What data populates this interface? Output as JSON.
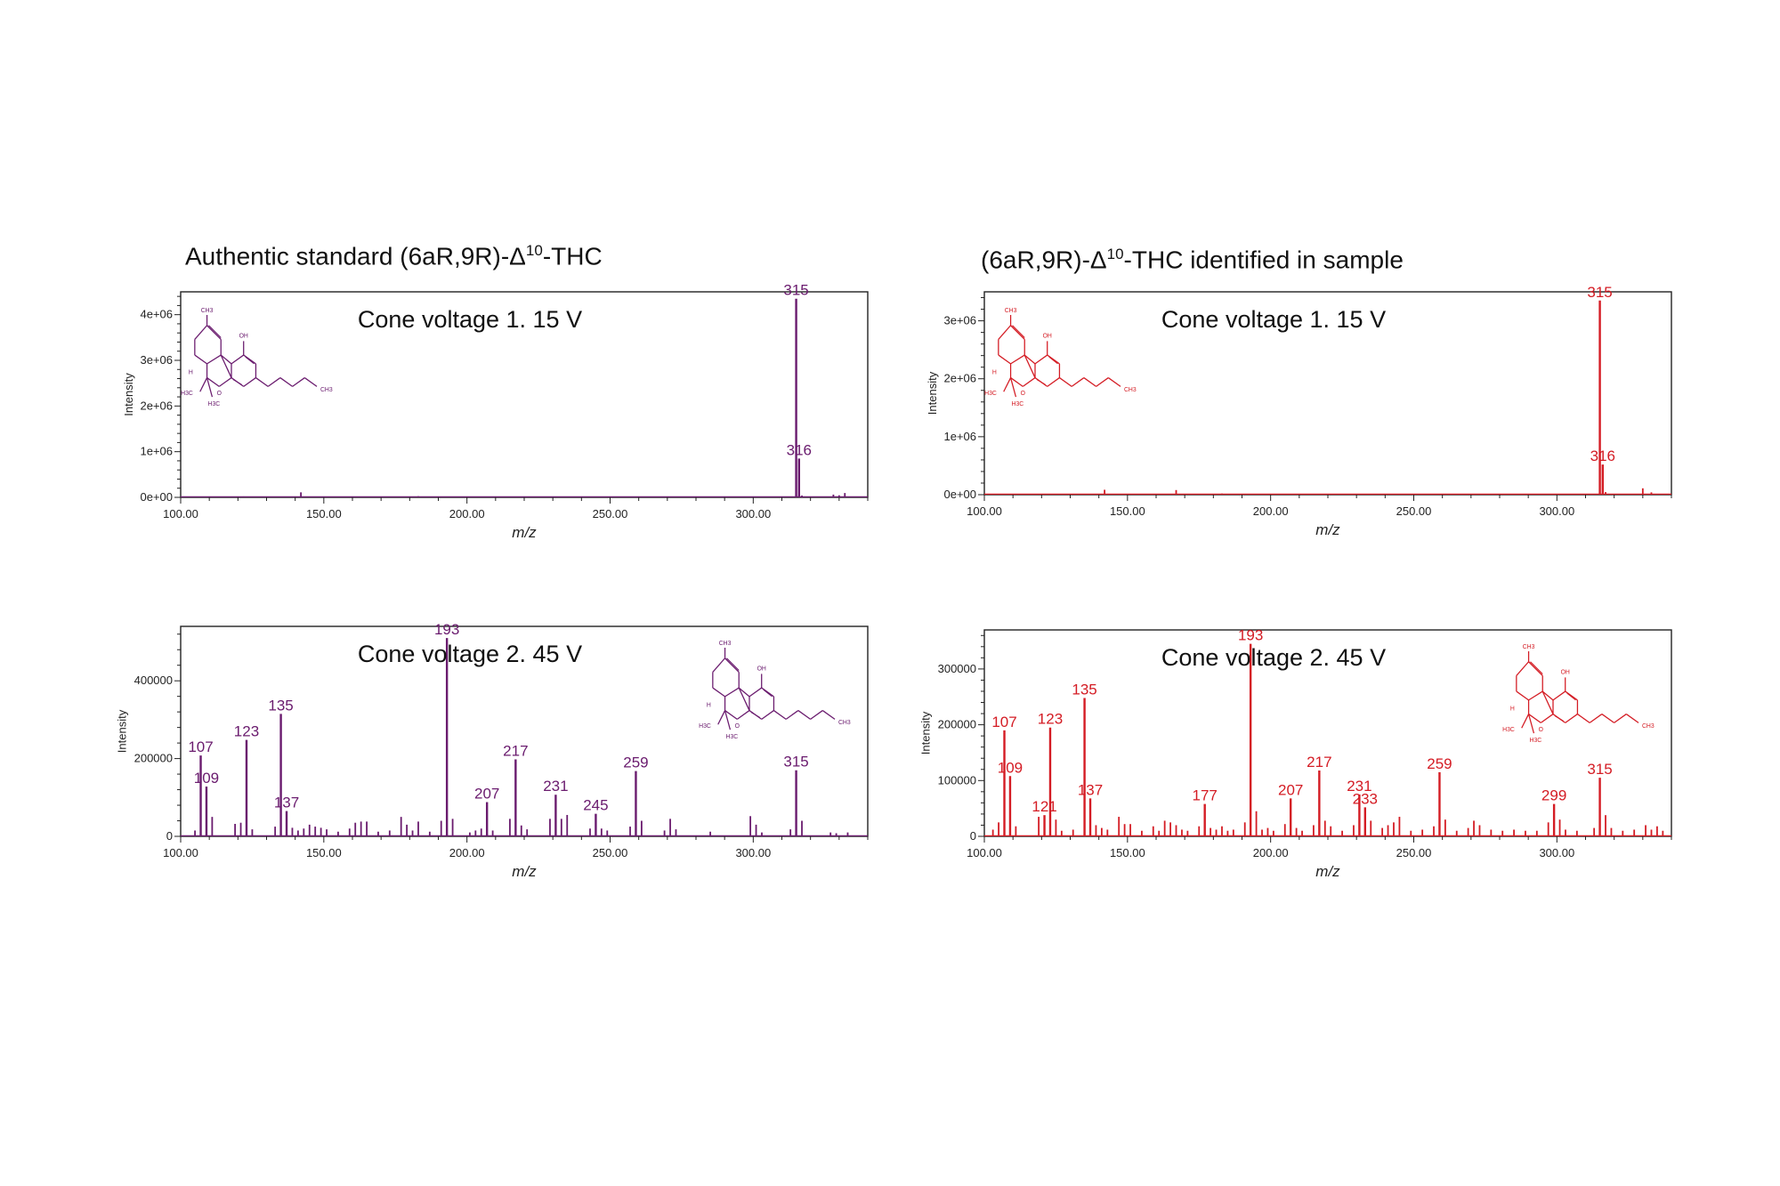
{
  "headings": {
    "left": {
      "pre": "Authentic standard (6aR,9R)-Δ",
      "sup": "10",
      "post": "-THC"
    },
    "right": {
      "pre": "(6aR,9R)-Δ",
      "sup": "10",
      "post": "-THC identified in sample"
    }
  },
  "colors": {
    "standard": "#6a1b6e",
    "sample": "#d41c24",
    "frame": "#222222"
  },
  "chart_data": [
    {
      "type": "bar",
      "panel": "standard-15V",
      "title": "Cone voltage 1. 15 V",
      "xlabel": "m/z",
      "ylabel": "Intensity",
      "xlim": [
        100,
        340
      ],
      "ylim": [
        0,
        4500000
      ],
      "x_ticks": [
        100,
        150,
        200,
        250,
        300
      ],
      "x_tick_labels": [
        "100.00",
        "150.00",
        "200.00",
        "250.00",
        "300.00"
      ],
      "y_ticks": [
        0,
        1000000,
        2000000,
        3000000,
        4000000
      ],
      "y_tick_labels": [
        "0e+00",
        "1e+06",
        "2e+06",
        "3e+06",
        "4e+06"
      ],
      "labeled_peaks": [
        {
          "x": 315,
          "y": 4350000,
          "label": "315"
        },
        {
          "x": 316,
          "y": 850000,
          "label": "316"
        }
      ],
      "minor_peaks": [
        [
          118,
          15000
        ],
        [
          122,
          20000
        ],
        [
          125,
          18000
        ],
        [
          142,
          110000
        ],
        [
          160,
          12000
        ],
        [
          183,
          25000
        ],
        [
          210,
          10000
        ],
        [
          231,
          15000
        ],
        [
          259,
          12000
        ],
        [
          317,
          40000
        ],
        [
          328,
          60000
        ],
        [
          330,
          45000
        ],
        [
          332,
          95000
        ]
      ]
    },
    {
      "type": "bar",
      "panel": "standard-45V",
      "title": "Cone voltage 2. 45 V",
      "xlabel": "m/z",
      "ylabel": "Intensity",
      "xlim": [
        100,
        340
      ],
      "ylim": [
        0,
        540000
      ],
      "x_ticks": [
        100,
        150,
        200,
        250,
        300
      ],
      "x_tick_labels": [
        "100.00",
        "150.00",
        "200.00",
        "250.00",
        "300.00"
      ],
      "y_ticks": [
        0,
        200000,
        400000
      ],
      "y_tick_labels": [
        "0",
        "200000",
        "400000"
      ],
      "labeled_peaks": [
        {
          "x": 107,
          "y": 208000,
          "label": "107"
        },
        {
          "x": 109,
          "y": 128000,
          "label": "109"
        },
        {
          "x": 123,
          "y": 248000,
          "label": "123"
        },
        {
          "x": 135,
          "y": 315000,
          "label": "135"
        },
        {
          "x": 137,
          "y": 65000,
          "label": "137"
        },
        {
          "x": 193,
          "y": 510000,
          "label": "193"
        },
        {
          "x": 207,
          "y": 88000,
          "label": "207"
        },
        {
          "x": 217,
          "y": 198000,
          "label": "217"
        },
        {
          "x": 231,
          "y": 107000,
          "label": "231"
        },
        {
          "x": 245,
          "y": 58000,
          "label": "245"
        },
        {
          "x": 259,
          "y": 168000,
          "label": "259"
        },
        {
          "x": 315,
          "y": 170000,
          "label": "315"
        }
      ],
      "minor_peaks": [
        [
          105,
          15000
        ],
        [
          111,
          50000
        ],
        [
          119,
          32000
        ],
        [
          121,
          35000
        ],
        [
          125,
          18000
        ],
        [
          133,
          25000
        ],
        [
          139,
          22000
        ],
        [
          141,
          15000
        ],
        [
          143,
          20000
        ],
        [
          145,
          30000
        ],
        [
          147,
          25000
        ],
        [
          149,
          22000
        ],
        [
          151,
          18000
        ],
        [
          155,
          12000
        ],
        [
          159,
          20000
        ],
        [
          161,
          35000
        ],
        [
          163,
          38000
        ],
        [
          165,
          38000
        ],
        [
          169,
          12000
        ],
        [
          173,
          15000
        ],
        [
          177,
          50000
        ],
        [
          179,
          30000
        ],
        [
          181,
          15000
        ],
        [
          183,
          38000
        ],
        [
          187,
          12000
        ],
        [
          191,
          40000
        ],
        [
          195,
          45000
        ],
        [
          201,
          10000
        ],
        [
          203,
          15000
        ],
        [
          205,
          20000
        ],
        [
          209,
          15000
        ],
        [
          215,
          45000
        ],
        [
          219,
          28000
        ],
        [
          221,
          18000
        ],
        [
          229,
          45000
        ],
        [
          233,
          45000
        ],
        [
          235,
          55000
        ],
        [
          243,
          20000
        ],
        [
          247,
          20000
        ],
        [
          249,
          15000
        ],
        [
          257,
          25000
        ],
        [
          261,
          40000
        ],
        [
          269,
          15000
        ],
        [
          271,
          45000
        ],
        [
          273,
          18000
        ],
        [
          285,
          12000
        ],
        [
          299,
          52000
        ],
        [
          301,
          30000
        ],
        [
          303,
          10000
        ],
        [
          313,
          18000
        ],
        [
          317,
          40000
        ],
        [
          327,
          10000
        ],
        [
          329,
          8000
        ],
        [
          333,
          10000
        ]
      ]
    },
    {
      "type": "bar",
      "panel": "sample-15V",
      "title": "Cone voltage 1. 15 V",
      "xlabel": "m/z",
      "ylabel": "Intensity",
      "xlim": [
        100,
        340
      ],
      "ylim": [
        0,
        3500000
      ],
      "x_ticks": [
        100,
        150,
        200,
        250,
        300
      ],
      "x_tick_labels": [
        "100.00",
        "150.00",
        "200.00",
        "250.00",
        "300.00"
      ],
      "y_ticks": [
        0,
        1000000,
        2000000,
        3000000
      ],
      "y_tick_labels": [
        "0e+00",
        "1e+06",
        "2e+06",
        "3e+06"
      ],
      "labeled_peaks": [
        {
          "x": 315,
          "y": 3350000,
          "label": "315"
        },
        {
          "x": 316,
          "y": 520000,
          "label": "316"
        }
      ],
      "minor_peaks": [
        [
          142,
          85000
        ],
        [
          167,
          80000
        ],
        [
          183,
          20000
        ],
        [
          207,
          12000
        ],
        [
          231,
          10000
        ],
        [
          259,
          12000
        ],
        [
          279,
          15000
        ],
        [
          317,
          45000
        ],
        [
          330,
          110000
        ],
        [
          333,
          40000
        ]
      ]
    },
    {
      "type": "bar",
      "panel": "sample-45V",
      "title": "Cone voltage 2. 45 V",
      "xlabel": "m/z",
      "ylabel": "Intensity",
      "xlim": [
        100,
        340
      ],
      "ylim": [
        0,
        370000
      ],
      "x_ticks": [
        100,
        150,
        200,
        250,
        300
      ],
      "x_tick_labels": [
        "100.00",
        "150.00",
        "200.00",
        "250.00",
        "300.00"
      ],
      "y_ticks": [
        0,
        100000,
        200000,
        300000
      ],
      "y_tick_labels": [
        "0",
        "100000",
        "200000",
        "300000"
      ],
      "labeled_peaks": [
        {
          "x": 107,
          "y": 190000,
          "label": "107"
        },
        {
          "x": 109,
          "y": 108000,
          "label": "109"
        },
        {
          "x": 121,
          "y": 38000,
          "label": "121"
        },
        {
          "x": 123,
          "y": 195000,
          "label": "123"
        },
        {
          "x": 135,
          "y": 248000,
          "label": "135"
        },
        {
          "x": 137,
          "y": 68000,
          "label": "137"
        },
        {
          "x": 177,
          "y": 58000,
          "label": "177"
        },
        {
          "x": 193,
          "y": 345000,
          "label": "193"
        },
        {
          "x": 207,
          "y": 68000,
          "label": "207"
        },
        {
          "x": 217,
          "y": 118000,
          "label": "217"
        },
        {
          "x": 231,
          "y": 75000,
          "label": "231"
        },
        {
          "x": 233,
          "y": 52000,
          "label": "233"
        },
        {
          "x": 259,
          "y": 115000,
          "label": "259"
        },
        {
          "x": 299,
          "y": 58000,
          "label": "299"
        },
        {
          "x": 315,
          "y": 105000,
          "label": "315"
        }
      ],
      "minor_peaks": [
        [
          103,
          12000
        ],
        [
          105,
          25000
        ],
        [
          111,
          18000
        ],
        [
          119,
          35000
        ],
        [
          125,
          30000
        ],
        [
          127,
          10000
        ],
        [
          131,
          12000
        ],
        [
          139,
          20000
        ],
        [
          141,
          15000
        ],
        [
          143,
          12000
        ],
        [
          147,
          35000
        ],
        [
          149,
          22000
        ],
        [
          151,
          22000
        ],
        [
          155,
          10000
        ],
        [
          159,
          18000
        ],
        [
          161,
          10000
        ],
        [
          163,
          28000
        ],
        [
          165,
          25000
        ],
        [
          167,
          20000
        ],
        [
          169,
          12000
        ],
        [
          171,
          10000
        ],
        [
          175,
          18000
        ],
        [
          179,
          15000
        ],
        [
          181,
          12000
        ],
        [
          183,
          18000
        ],
        [
          185,
          10000
        ],
        [
          187,
          12000
        ],
        [
          191,
          25000
        ],
        [
          195,
          45000
        ],
        [
          197,
          12000
        ],
        [
          199,
          15000
        ],
        [
          201,
          10000
        ],
        [
          205,
          22000
        ],
        [
          209,
          15000
        ],
        [
          211,
          10000
        ],
        [
          215,
          20000
        ],
        [
          219,
          28000
        ],
        [
          221,
          18000
        ],
        [
          225,
          10000
        ],
        [
          229,
          20000
        ],
        [
          235,
          28000
        ],
        [
          239,
          15000
        ],
        [
          241,
          20000
        ],
        [
          243,
          25000
        ],
        [
          245,
          35000
        ],
        [
          249,
          10000
        ],
        [
          253,
          12000
        ],
        [
          257,
          18000
        ],
        [
          261,
          30000
        ],
        [
          265,
          10000
        ],
        [
          269,
          15000
        ],
        [
          271,
          28000
        ],
        [
          273,
          20000
        ],
        [
          277,
          12000
        ],
        [
          281,
          10000
        ],
        [
          285,
          12000
        ],
        [
          289,
          10000
        ],
        [
          293,
          10000
        ],
        [
          297,
          25000
        ],
        [
          301,
          30000
        ],
        [
          303,
          12000
        ],
        [
          307,
          10000
        ],
        [
          313,
          15000
        ],
        [
          317,
          38000
        ],
        [
          319,
          15000
        ],
        [
          323,
          10000
        ],
        [
          327,
          12000
        ],
        [
          331,
          20000
        ],
        [
          333,
          12000
        ],
        [
          335,
          18000
        ],
        [
          337,
          10000
        ]
      ]
    }
  ]
}
